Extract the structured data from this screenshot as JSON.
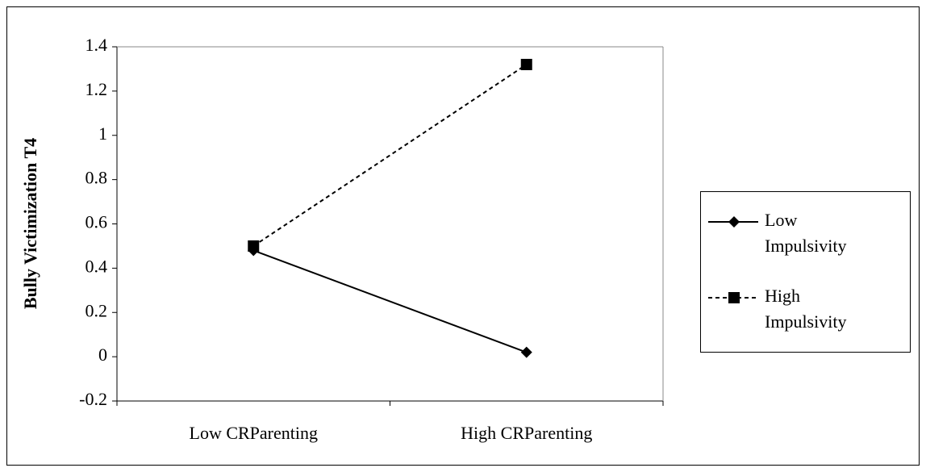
{
  "chart_data": {
    "type": "line",
    "ylabel": "Bully Victimization T4",
    "categories": [
      "Low CRParenting",
      "High CRParenting"
    ],
    "series": [
      {
        "name": "Low Impulsivity",
        "color": "#000000",
        "line_style": "solid",
        "marker": "diamond",
        "values": [
          0.48,
          0.02
        ]
      },
      {
        "name": "High Impulsivity",
        "color": "#000000",
        "line_style": "dashed",
        "marker": "square",
        "values": [
          0.5,
          1.32
        ]
      }
    ],
    "ylim": [
      -0.2,
      1.4
    ],
    "yticks": [
      -0.2,
      0,
      0.2,
      0.4,
      0.6,
      0.8,
      1,
      1.2,
      1.4
    ],
    "grid": false,
    "legend": "right"
  }
}
